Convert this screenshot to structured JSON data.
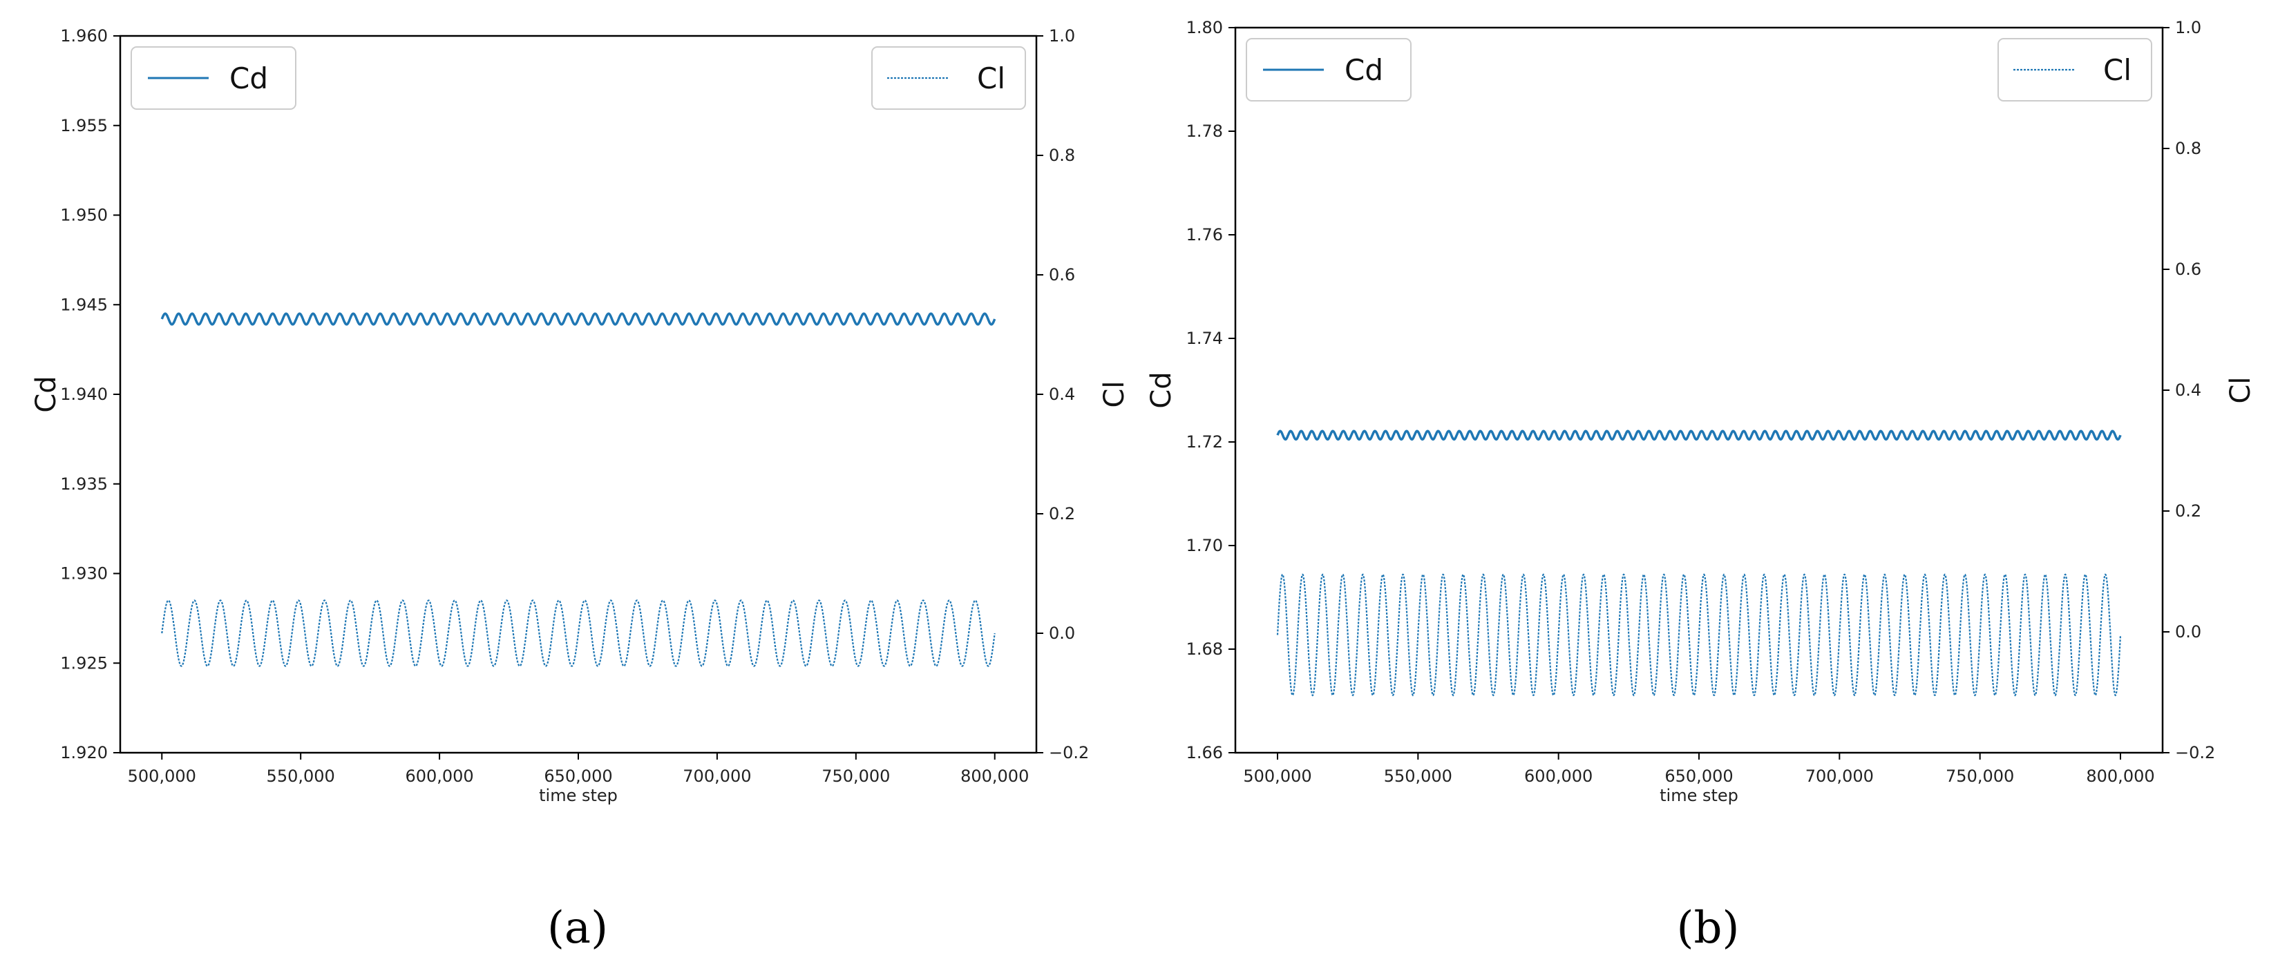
{
  "chart_data": [
    {
      "type": "line",
      "panel_label": "(a)",
      "xlabel": "time step",
      "ylabel_left": "Cd",
      "ylabel_right": "Cl",
      "x_ticks": [
        "500,000",
        "550,000",
        "600,000",
        "650,000",
        "700,000",
        "750,000",
        "800,000"
      ],
      "y_left_ticks": [
        "1.920",
        "1.925",
        "1.930",
        "1.935",
        "1.940",
        "1.945",
        "1.950",
        "1.955",
        "1.960"
      ],
      "y_right_ticks": [
        "−0.2",
        "0.0",
        "0.2",
        "0.4",
        "0.6",
        "0.8",
        "1.0"
      ],
      "xlim": [
        485000,
        815000
      ],
      "ylim_left": [
        1.92,
        1.96
      ],
      "ylim_right": [
        -0.2,
        1.0
      ],
      "legend": {
        "left": "Cd",
        "right": "Cl"
      },
      "series": [
        {
          "name": "Cd",
          "axis": "left",
          "style": "solid",
          "color": "#1f77b4",
          "x_start": 500000,
          "x_end": 800000,
          "mean": 1.9442,
          "amplitude": 0.0003,
          "cycles": 62
        },
        {
          "name": "Cl",
          "axis": "right",
          "style": "dotted",
          "color": "#1f77b4",
          "x_start": 500000,
          "x_end": 800000,
          "mean": 0.0,
          "amplitude": 0.055,
          "cycles": 32
        }
      ]
    },
    {
      "type": "line",
      "panel_label": "(b)",
      "xlabel": "time step",
      "ylabel_left": "Cd",
      "ylabel_right": "Cl",
      "x_ticks": [
        "500,000",
        "550,000",
        "600,000",
        "650,000",
        "700,000",
        "750,000",
        "800,000"
      ],
      "y_left_ticks": [
        "1.66",
        "1.68",
        "1.70",
        "1.72",
        "1.74",
        "1.76",
        "1.78",
        "1.80"
      ],
      "y_right_ticks": [
        "−0.2",
        "0.0",
        "0.2",
        "0.4",
        "0.6",
        "0.8",
        "1.0"
      ],
      "xlim": [
        485000,
        815000
      ],
      "ylim_left": [
        1.66,
        1.8
      ],
      "ylim_right": [
        -0.2,
        1.0
      ],
      "legend": {
        "left": "Cd",
        "right": "Cl"
      },
      "series": [
        {
          "name": "Cd",
          "axis": "left",
          "style": "solid",
          "color": "#1f77b4",
          "x_start": 500000,
          "x_end": 800000,
          "mean": 1.7213,
          "amplitude": 0.0008,
          "cycles": 80
        },
        {
          "name": "Cl",
          "axis": "right",
          "style": "dotted",
          "color": "#1f77b4",
          "x_start": 500000,
          "x_end": 800000,
          "mean": -0.005,
          "amplitude": 0.1,
          "cycles": 42
        }
      ]
    }
  ]
}
